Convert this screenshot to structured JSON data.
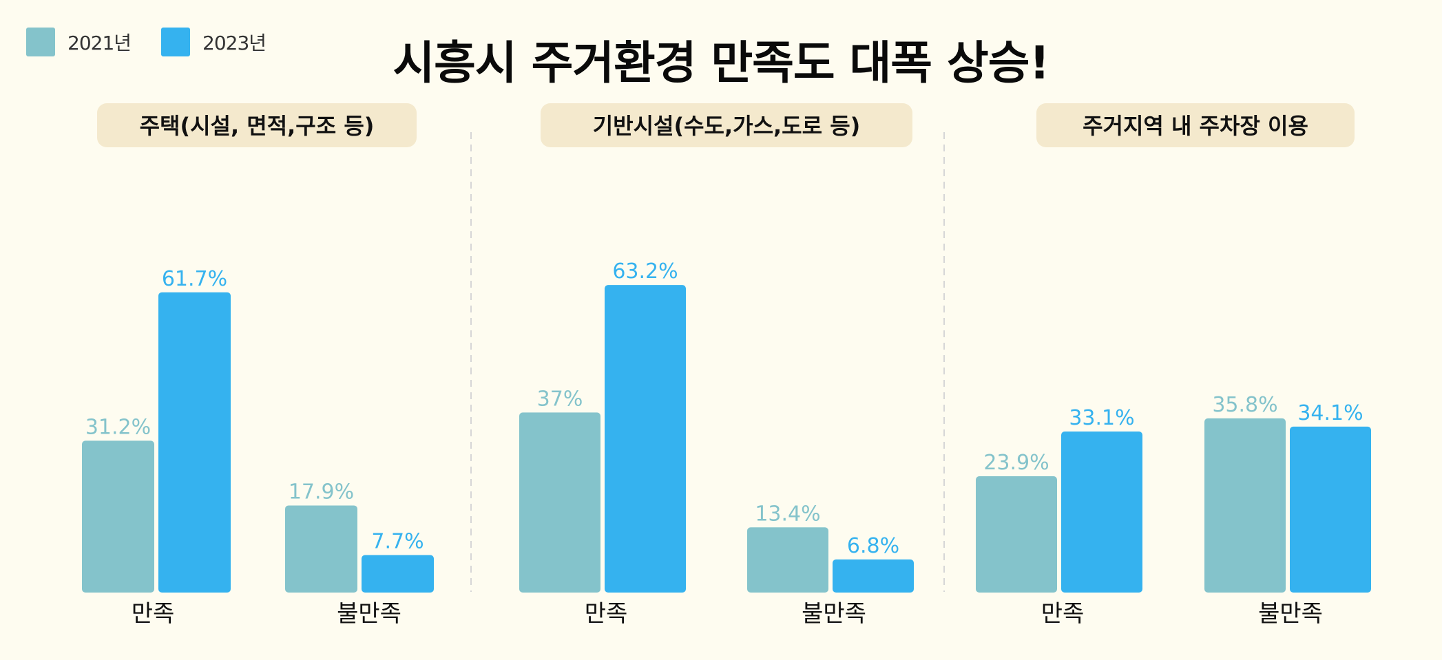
{
  "title": "시흥시 주거환경 만족도 대폭 상승!",
  "legend": [
    {
      "label": "2021년",
      "color": "#84c3cb"
    },
    {
      "label": "2023년",
      "color": "#35b2ef"
    }
  ],
  "chart_data": {
    "type": "bar",
    "unit": "%",
    "grid": false,
    "legend_position": "top-left",
    "series_names": [
      "2021년",
      "2023년"
    ],
    "series_colors": [
      "#84c3cb",
      "#35b2ef"
    ],
    "panels": [
      {
        "title": "주택(시설, 면적,구조 등)",
        "categories": [
          "만족",
          "불만족"
        ],
        "series": [
          {
            "name": "2021년",
            "values": [
              31.2,
              17.9
            ],
            "labels": [
              "31.2%",
              "17.9%"
            ]
          },
          {
            "name": "2023년",
            "values": [
              61.7,
              7.7
            ],
            "labels": [
              "61.7%",
              "7.7%"
            ]
          }
        ]
      },
      {
        "title": "기반시설(수도,가스,도로 등)",
        "categories": [
          "만족",
          "불만족"
        ],
        "series": [
          {
            "name": "2021년",
            "values": [
              37,
              13.4
            ],
            "labels": [
              "37%",
              "13.4%"
            ]
          },
          {
            "name": "2023년",
            "values": [
              63.2,
              6.8
            ],
            "labels": [
              "63.2%",
              "6.8%"
            ]
          }
        ]
      },
      {
        "title": "주거지역 내 주차장 이용",
        "categories": [
          "만족",
          "불만족"
        ],
        "series": [
          {
            "name": "2021년",
            "values": [
              23.9,
              35.8
            ],
            "labels": [
              "23.9%",
              "35.8%"
            ]
          },
          {
            "name": "2023년",
            "values": [
              33.1,
              34.1
            ],
            "labels": [
              "33.1%",
              "34.1%"
            ]
          }
        ]
      }
    ]
  }
}
